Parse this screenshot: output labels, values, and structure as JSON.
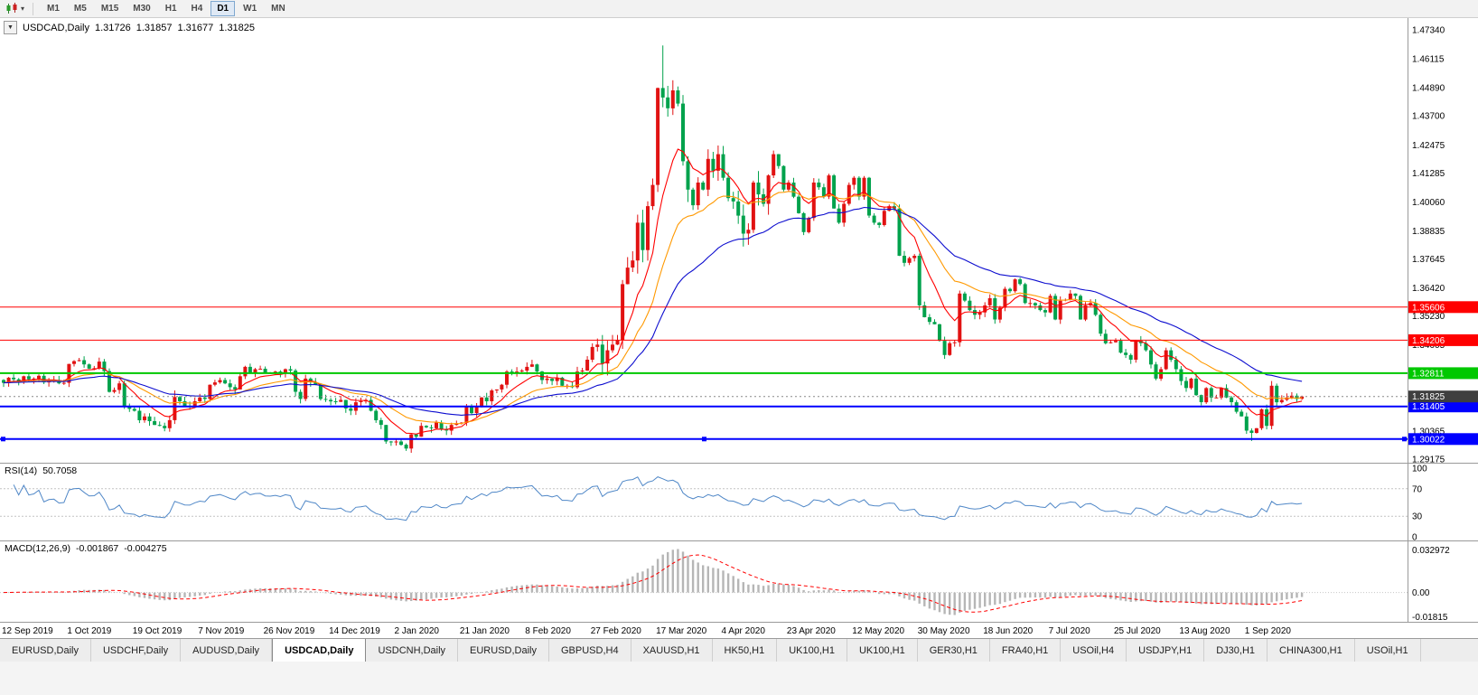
{
  "toolbar": {
    "timeframes": [
      "M1",
      "M5",
      "M15",
      "M30",
      "H1",
      "H4",
      "D1",
      "W1",
      "MN"
    ],
    "active_timeframe": "D1"
  },
  "chart": {
    "title": {
      "symbol": "USDCAD,Daily",
      "open": "1.31726",
      "high": "1.31857",
      "low": "1.31677",
      "close": "1.31825"
    },
    "rsi": {
      "name": "RSI(14)",
      "value": "50.7058",
      "axis": [
        "100",
        "70",
        "30",
        "0"
      ]
    },
    "macd": {
      "name": "MACD(12,26,9)",
      "value_main": "-0.001867",
      "value_signal": "-0.004275",
      "axis": [
        "0.032972",
        "0.00",
        "-0.01815"
      ]
    }
  },
  "chart_data": {
    "type": "candlestick",
    "symbol": "USDCAD",
    "timeframe": "Daily",
    "colors": {
      "up": "#e11212",
      "down": "#00a24c"
    },
    "price_range": {
      "min": 1.2902,
      "max": 1.4784
    },
    "y_ticks": [
      "1.47340",
      "1.46115",
      "1.44890",
      "1.43700",
      "1.42475",
      "1.41285",
      "1.40060",
      "1.38835",
      "1.37645",
      "1.36420",
      "1.35230",
      "1.34005",
      "1.32780",
      "1.31590",
      "1.30365",
      "1.29175"
    ],
    "x_label_interval": 13,
    "x_labels": [
      "12 Sep 2019",
      "1 Oct 2019",
      "19 Oct 2019",
      "7 Nov 2019",
      "26 Nov 2019",
      "14 Dec 2019",
      "2 Jan 2020",
      "21 Jan 2020",
      "8 Feb 2020",
      "27 Feb 2020",
      "17 Mar 2020",
      "4 Apr 2020",
      "23 Apr 2020",
      "12 May 2020",
      "30 May 2020",
      "18 Jun 2020",
      "7 Jul 2020",
      "25 Jul 2020",
      "13 Aug 2020",
      "1 Sep 2020"
    ],
    "closes": [
      1.324,
      1.3262,
      1.3255,
      1.3248,
      1.3268,
      1.3255,
      1.3258,
      1.327,
      1.3242,
      1.325,
      1.3252,
      1.3238,
      1.324,
      1.332,
      1.3332,
      1.3336,
      1.3318,
      1.33,
      1.3302,
      1.333,
      1.329,
      1.3202,
      1.321,
      1.3238,
      1.3142,
      1.313,
      1.3122,
      1.3082,
      1.3098,
      1.3078,
      1.3062,
      1.3058,
      1.3048,
      1.3082,
      1.318,
      1.3162,
      1.3142,
      1.314,
      1.3162,
      1.3178,
      1.3172,
      1.3232,
      1.3242,
      1.3252,
      1.3238,
      1.3222,
      1.3212,
      1.3268,
      1.3308,
      1.3282,
      1.3298,
      1.33,
      1.3282,
      1.328,
      1.3288,
      1.328,
      1.3298,
      1.3292,
      1.3202,
      1.3172,
      1.3258,
      1.3242,
      1.3232,
      1.3172,
      1.3168,
      1.3162,
      1.316,
      1.3168,
      1.3132,
      1.3122,
      1.3158,
      1.3162,
      1.3168,
      1.3122,
      1.3082,
      1.3062,
      1.2992,
      1.2988,
      1.2992,
      1.2978,
      1.2962,
      1.3022,
      1.3012,
      1.3058,
      1.3052,
      1.3048,
      1.3072,
      1.3042,
      1.3038,
      1.3062,
      1.3068,
      1.3072,
      1.3138,
      1.3112,
      1.3142,
      1.3178,
      1.3162,
      1.3208,
      1.3212,
      1.3232,
      1.3288,
      1.3282,
      1.3288,
      1.3292,
      1.3308,
      1.3318,
      1.3288,
      1.3252,
      1.3258,
      1.3248,
      1.3262,
      1.3228,
      1.3228,
      1.3222,
      1.3288,
      1.3292,
      1.3338,
      1.3392,
      1.3402,
      1.3322,
      1.3378,
      1.3402,
      1.3422,
      1.3658,
      1.3728,
      1.3758,
      1.3918,
      1.3802,
      1.3988,
      1.4078,
      1.4488,
      1.4448,
      1.4402,
      1.4478,
      1.4422,
      1.4178,
      1.4058,
      1.3992,
      1.4088,
      1.4058,
      1.4188,
      1.4138,
      1.4208,
      1.4108,
      1.4022,
      1.4008,
      1.3948,
      1.3872,
      1.3888,
      1.4088,
      1.4038,
      1.3998,
      1.4118,
      1.4208,
      1.4158,
      1.4058,
      1.4088,
      1.4028,
      1.3958,
      1.3878,
      1.3938,
      1.4088,
      1.4068,
      1.4028,
      1.4118,
      1.3978,
      1.3918,
      1.3998,
      1.4078,
      1.4108,
      1.4028,
      1.4108,
      1.3948,
      1.3918,
      1.3908,
      1.3968,
      1.3988,
      1.3978,
      1.3778,
      1.3748,
      1.3768,
      1.3778,
      1.3568,
      1.3518,
      1.3498,
      1.3488,
      1.3418,
      1.3358,
      1.3408,
      1.3412,
      1.3618,
      1.3588,
      1.3548,
      1.3528,
      1.3538,
      1.3568,
      1.3598,
      1.3508,
      1.3558,
      1.3638,
      1.3628,
      1.3678,
      1.3658,
      1.3578,
      1.3578,
      1.3568,
      1.3548,
      1.3538,
      1.3608,
      1.3508,
      1.3588,
      1.3592,
      1.3618,
      1.3608,
      1.3508,
      1.3568,
      1.3578,
      1.3528,
      1.3448,
      1.3408,
      1.3412,
      1.3418,
      1.3368,
      1.3358,
      1.3338,
      1.3418,
      1.3408,
      1.3378,
      1.3318,
      1.3258,
      1.3298,
      1.3378,
      1.3338,
      1.3298,
      1.3248,
      1.3218,
      1.3258,
      1.3188,
      1.3158,
      1.3218,
      1.3178,
      1.3178,
      1.3218,
      1.3178,
      1.3158,
      1.3118,
      1.3098,
      1.3038,
      1.3028,
      1.3048,
      1.3128,
      1.3058,
      1.3228,
      1.3158,
      1.3168,
      1.3178,
      1.3186,
      1.3172,
      1.31825
    ],
    "wick_overrides": {
      "19": {
        "high": 1.3347
      },
      "34": {
        "high": 1.3208
      },
      "80": {
        "low": 1.2952
      },
      "131": {
        "high": 1.4668
      },
      "248": {
        "low": 1.2994
      }
    },
    "last_candle": {
      "open": 1.31726,
      "high": 1.31857,
      "low": 1.31677,
      "close": 1.31825
    },
    "moving_averages": [
      {
        "type": "ema",
        "period": 9,
        "color": "#ff0000"
      },
      {
        "type": "ema",
        "period": 21,
        "color": "#ff9900"
      },
      {
        "type": "ema",
        "period": 40,
        "color": "#0d0dcf"
      }
    ],
    "h_lines": [
      {
        "value": 1.35606,
        "label": "1.35606",
        "color": "#ff0000",
        "width": 1
      },
      {
        "value": 1.34206,
        "label": "1.34206",
        "color": "#ff0000",
        "width": 1
      },
      {
        "value": 1.32811,
        "label": "1.32811",
        "color": "#00c800",
        "width": 2
      },
      {
        "value": 1.31405,
        "label": "1.31405",
        "color": "#0000ff",
        "width": 2
      },
      {
        "value": 1.30022,
        "label": "1.30022",
        "color": "#0000ff",
        "width": 2,
        "selected": true
      }
    ],
    "current_price": {
      "value": 1.31825,
      "label": "1.31825",
      "color": "#3f3f3f"
    },
    "indicators": {
      "rsi": {
        "period": 14,
        "levels": [
          70,
          30
        ],
        "color": "#4f87c7"
      },
      "macd": {
        "fast": 12,
        "slow": 26,
        "signal": 9,
        "histogram_color": "#b6b6b6",
        "signal_color": "#ff0000",
        "scale_max": 0.032972,
        "scale_min": -0.01815
      }
    }
  },
  "tabs": [
    {
      "label": "EURUSD,Daily"
    },
    {
      "label": "USDCHF,Daily"
    },
    {
      "label": "AUDUSD,Daily"
    },
    {
      "label": "USDCAD,Daily",
      "active": true
    },
    {
      "label": "USDCNH,Daily"
    },
    {
      "label": "EURUSD,Daily"
    },
    {
      "label": "GBPUSD,H4"
    },
    {
      "label": "XAUUSD,H1"
    },
    {
      "label": "HK50,H1"
    },
    {
      "label": "UK100,H1"
    },
    {
      "label": "UK100,H1"
    },
    {
      "label": "GER30,H1"
    },
    {
      "label": "FRA40,H1"
    },
    {
      "label": "USOil,H4"
    },
    {
      "label": "USDJPY,H1"
    },
    {
      "label": "DJ30,H1"
    },
    {
      "label": "CHINA300,H1"
    },
    {
      "label": "USOil,H1"
    }
  ]
}
